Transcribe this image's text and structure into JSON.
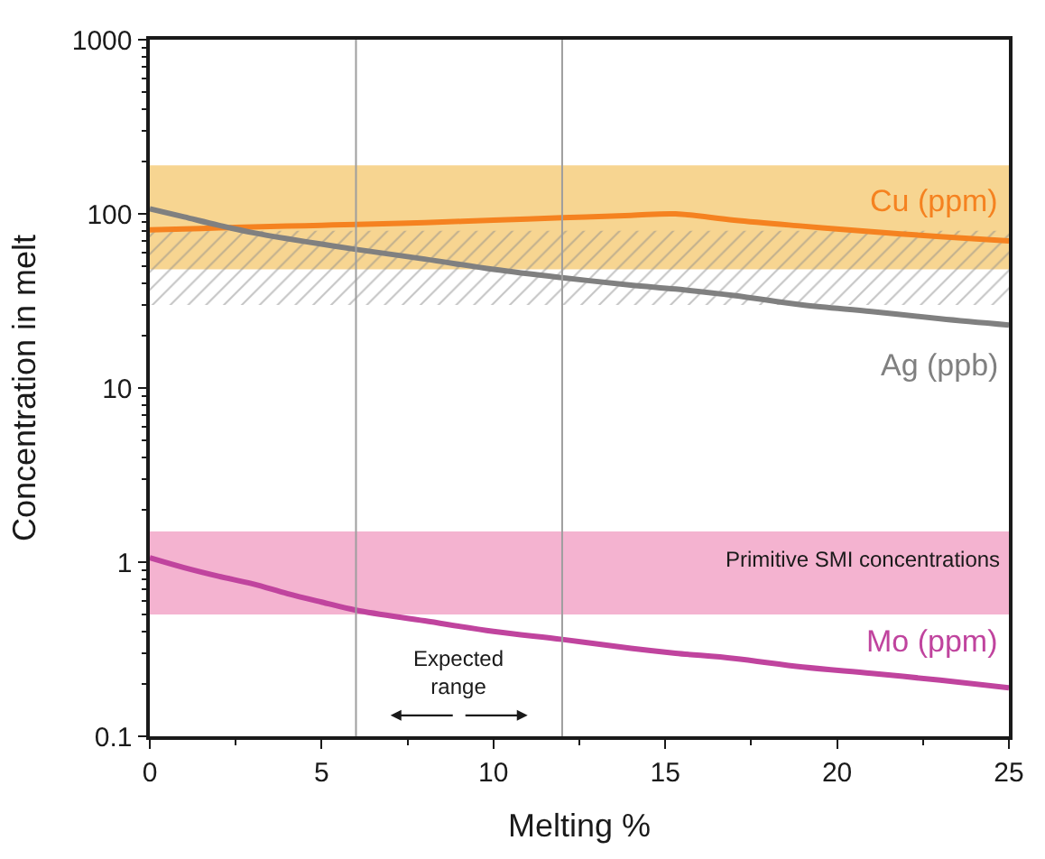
{
  "chart_data": {
    "type": "line",
    "xlabel": "Melting %",
    "ylabel": "Concentration in melt",
    "x": [
      0,
      1,
      2,
      3,
      4,
      5,
      6,
      8,
      10,
      12,
      14,
      15.3,
      17,
      19,
      21,
      23,
      25
    ],
    "series": [
      {
        "name": "Cu (ppm)",
        "color": "#f58220",
        "values": [
          81,
          82,
          83,
          84,
          85,
          86,
          87,
          89,
          92,
          95,
          98,
          100,
          92,
          85,
          79,
          74,
          70
        ]
      },
      {
        "name": "Ag (ppb)",
        "color": "#808080",
        "values": [
          107,
          96,
          86,
          78,
          72,
          67,
          62.5,
          55,
          48,
          43,
          39,
          37,
          34,
          30,
          27.5,
          25,
          23
        ]
      },
      {
        "name": "Mo (ppm)",
        "color": "#c0449e",
        "values": [
          1.06,
          0.93,
          0.83,
          0.75,
          0.66,
          0.59,
          0.53,
          0.46,
          0.4,
          0.36,
          0.32,
          0.3,
          0.28,
          0.25,
          0.23,
          0.21,
          0.19
        ]
      }
    ],
    "bands": [
      {
        "axis": "y",
        "from": 48,
        "to": 190,
        "color": "#f7d591"
      },
      {
        "axis": "y",
        "from": 30,
        "to": 80,
        "color": "#8c8c8c"
      },
      {
        "axis": "y",
        "from": 0.5,
        "to": 1.5,
        "color": "#f4b3d0",
        "label": "Primitive SMI concentrations"
      }
    ],
    "ref_lines": [
      {
        "axis": "x",
        "value": 6,
        "color": "#9e9e9e"
      },
      {
        "axis": "x",
        "value": 12,
        "color": "#9e9e9e"
      }
    ],
    "annotations": [
      "Expected range"
    ],
    "xlim": [
      0,
      25
    ],
    "xticks": [
      0,
      5,
      10,
      15,
      20,
      25
    ],
    "ylim": [
      0.1,
      1000
    ],
    "yticks": [
      0.1,
      1,
      10,
      100,
      1000
    ],
    "log": "y",
    "marker": "none",
    "line_style": "solid"
  }
}
